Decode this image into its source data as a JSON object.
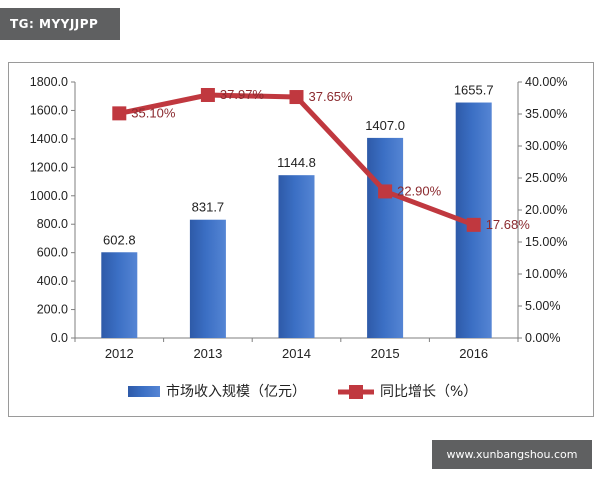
{
  "header": {
    "tag": "TG: MYYJJPP"
  },
  "footer": {
    "watermark": "www.xunbangshou.com"
  },
  "colors": {
    "bar": "#3b6fc4",
    "line": "#c0383f",
    "label_line": "#8b2a2f"
  },
  "chart_data": {
    "type": "bar+line",
    "categories": [
      "2012",
      "2013",
      "2014",
      "2015",
      "2016"
    ],
    "series": [
      {
        "name": "市场收入规模（亿元）",
        "type": "bar",
        "axis": "left",
        "values": [
          602.8,
          831.7,
          1144.8,
          1407.0,
          1655.7
        ],
        "labels": [
          "602.8",
          "831.7",
          "1144.8",
          "1407.0",
          "1655.7"
        ]
      },
      {
        "name": "同比增长（%）",
        "type": "line",
        "axis": "right",
        "values": [
          35.1,
          37.97,
          37.65,
          22.9,
          17.68
        ],
        "labels": [
          "35.10%",
          "37.97%",
          "37.65%",
          "22.90%",
          "17.68%"
        ]
      }
    ],
    "y_left": {
      "lim": [
        0,
        1800
      ],
      "ticks": [
        "0.0",
        "200.0",
        "400.0",
        "600.0",
        "800.0",
        "1000.0",
        "1200.0",
        "1400.0",
        "1600.0",
        "1800.0"
      ]
    },
    "y_right": {
      "lim": [
        0,
        40
      ],
      "ticks": [
        "0.00%",
        "5.00%",
        "10.00%",
        "15.00%",
        "20.00%",
        "25.00%",
        "30.00%",
        "35.00%",
        "40.00%"
      ]
    },
    "grid": false,
    "legend": "bottom"
  }
}
